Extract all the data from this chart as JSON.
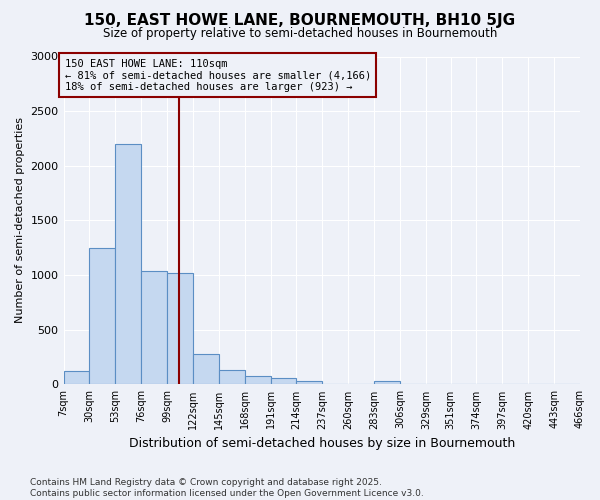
{
  "title_line1": "150, EAST HOWE LANE, BOURNEMOUTH, BH10 5JG",
  "title_line2": "Size of property relative to semi-detached houses in Bournemouth",
  "xlabel": "Distribution of semi-detached houses by size in Bournemouth",
  "ylabel": "Number of semi-detached properties",
  "bins": [
    7,
    30,
    53,
    76,
    99,
    122,
    145,
    168,
    191,
    214,
    237,
    260,
    283,
    306,
    329,
    351,
    374,
    397,
    420,
    443,
    466
  ],
  "bar_heights": [
    120,
    1250,
    2200,
    1040,
    1020,
    280,
    130,
    80,
    60,
    30,
    0,
    0,
    30,
    0,
    0,
    0,
    0,
    0,
    0,
    0
  ],
  "bar_color": "#c5d8f0",
  "bar_edge_color": "#5b8ec4",
  "property_size": 110,
  "vline_color": "#8b0000",
  "annotation_text": "150 EAST HOWE LANE: 110sqm\n← 81% of semi-detached houses are smaller (4,166)\n18% of semi-detached houses are larger (923) →",
  "annotation_box_color": "#8b0000",
  "ylim": [
    0,
    3000
  ],
  "yticks": [
    0,
    500,
    1000,
    1500,
    2000,
    2500,
    3000
  ],
  "bg_color": "#eef1f8",
  "grid_color": "#ffffff",
  "footer_text": "Contains HM Land Registry data © Crown copyright and database right 2025.\nContains public sector information licensed under the Open Government Licence v3.0.",
  "tick_labels": [
    "7sqm",
    "30sqm",
    "53sqm",
    "76sqm",
    "99sqm",
    "122sqm",
    "145sqm",
    "168sqm",
    "191sqm",
    "214sqm",
    "237sqm",
    "260sqm",
    "283sqm",
    "306sqm",
    "329sqm",
    "351sqm",
    "374sqm",
    "397sqm",
    "420sqm",
    "443sqm",
    "466sqm"
  ]
}
